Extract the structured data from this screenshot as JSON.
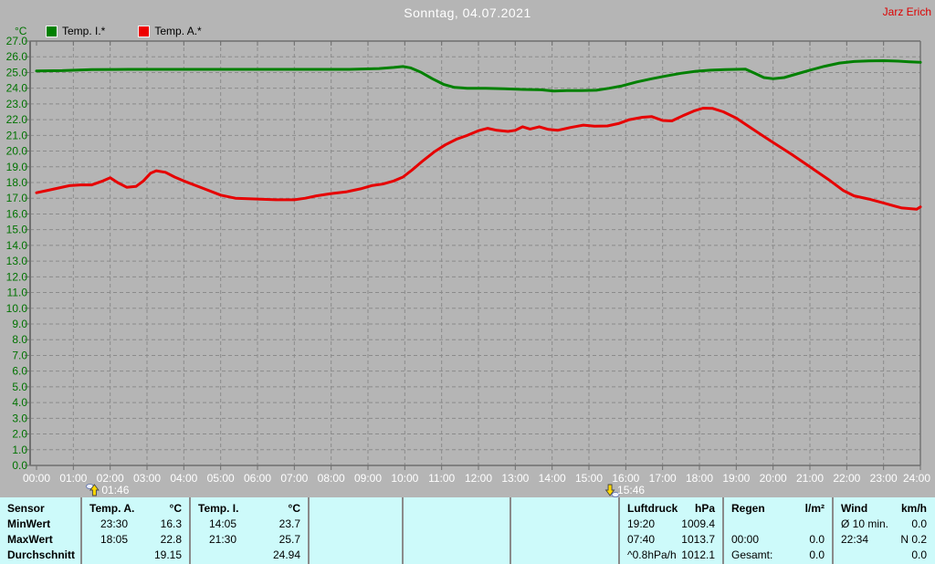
{
  "header": {
    "title": "Sonntag, 04.07.2021",
    "author": "Jarz Erich"
  },
  "chart_data": {
    "type": "line",
    "title": "Sonntag, 04.07.2021",
    "ylabel": "°C",
    "ylim": [
      0.0,
      27.0
    ],
    "ytick_step": 1.0,
    "xlim_hours": [
      0,
      24
    ],
    "xtick_step_hours": 1,
    "grid": true,
    "legend_position": "top-left",
    "series": [
      {
        "name": "Temp. I.*",
        "color": "#008000",
        "points": [
          [
            0,
            25.1
          ],
          [
            0.7,
            25.12
          ],
          [
            1.5,
            25.18
          ],
          [
            2.5,
            25.2
          ],
          [
            4,
            25.2
          ],
          [
            5.5,
            25.2
          ],
          [
            7,
            25.2
          ],
          [
            8.5,
            25.2
          ],
          [
            9.3,
            25.25
          ],
          [
            9.7,
            25.32
          ],
          [
            9.95,
            25.38
          ],
          [
            10.15,
            25.3
          ],
          [
            10.45,
            25.0
          ],
          [
            10.75,
            24.6
          ],
          [
            11.05,
            24.25
          ],
          [
            11.35,
            24.05
          ],
          [
            11.7,
            24.0
          ],
          [
            12.2,
            24.0
          ],
          [
            12.7,
            23.97
          ],
          [
            13.2,
            23.92
          ],
          [
            13.7,
            23.9
          ],
          [
            14.05,
            23.82
          ],
          [
            14.4,
            23.85
          ],
          [
            14.8,
            23.85
          ],
          [
            15.2,
            23.87
          ],
          [
            15.55,
            24.0
          ],
          [
            15.9,
            24.15
          ],
          [
            16.3,
            24.4
          ],
          [
            16.7,
            24.6
          ],
          [
            17.1,
            24.78
          ],
          [
            17.5,
            24.95
          ],
          [
            17.9,
            25.08
          ],
          [
            18.3,
            25.15
          ],
          [
            18.7,
            25.18
          ],
          [
            19.0,
            25.2
          ],
          [
            19.25,
            25.22
          ],
          [
            19.5,
            24.95
          ],
          [
            19.75,
            24.68
          ],
          [
            20.0,
            24.6
          ],
          [
            20.3,
            24.68
          ],
          [
            20.6,
            24.88
          ],
          [
            21.0,
            25.15
          ],
          [
            21.4,
            25.4
          ],
          [
            21.8,
            25.6
          ],
          [
            22.2,
            25.7
          ],
          [
            22.6,
            25.74
          ],
          [
            23.0,
            25.75
          ],
          [
            23.4,
            25.72
          ],
          [
            23.7,
            25.68
          ],
          [
            24,
            25.65
          ]
        ]
      },
      {
        "name": "Temp. A.*",
        "color": "#e60000",
        "points": [
          [
            0,
            17.35
          ],
          [
            0.3,
            17.5
          ],
          [
            0.6,
            17.65
          ],
          [
            0.9,
            17.8
          ],
          [
            1.2,
            17.85
          ],
          [
            1.5,
            17.85
          ],
          [
            1.8,
            18.1
          ],
          [
            2.0,
            18.3
          ],
          [
            2.2,
            18.0
          ],
          [
            2.45,
            17.7
          ],
          [
            2.7,
            17.75
          ],
          [
            2.9,
            18.1
          ],
          [
            3.1,
            18.6
          ],
          [
            3.25,
            18.75
          ],
          [
            3.5,
            18.65
          ],
          [
            3.75,
            18.35
          ],
          [
            4.0,
            18.1
          ],
          [
            4.5,
            17.65
          ],
          [
            5.0,
            17.2
          ],
          [
            5.4,
            17.0
          ],
          [
            6.0,
            16.95
          ],
          [
            6.5,
            16.9
          ],
          [
            7.0,
            16.9
          ],
          [
            7.3,
            17.0
          ],
          [
            7.6,
            17.15
          ],
          [
            8.0,
            17.3
          ],
          [
            8.4,
            17.4
          ],
          [
            8.8,
            17.6
          ],
          [
            9.1,
            17.8
          ],
          [
            9.4,
            17.9
          ],
          [
            9.7,
            18.1
          ],
          [
            9.95,
            18.35
          ],
          [
            10.2,
            18.8
          ],
          [
            10.5,
            19.4
          ],
          [
            10.8,
            19.95
          ],
          [
            11.1,
            20.4
          ],
          [
            11.4,
            20.75
          ],
          [
            11.7,
            21.0
          ],
          [
            12.0,
            21.3
          ],
          [
            12.25,
            21.45
          ],
          [
            12.5,
            21.32
          ],
          [
            12.8,
            21.25
          ],
          [
            13.0,
            21.32
          ],
          [
            13.2,
            21.55
          ],
          [
            13.4,
            21.4
          ],
          [
            13.65,
            21.55
          ],
          [
            13.9,
            21.38
          ],
          [
            14.15,
            21.32
          ],
          [
            14.5,
            21.5
          ],
          [
            14.85,
            21.65
          ],
          [
            15.15,
            21.58
          ],
          [
            15.5,
            21.6
          ],
          [
            15.8,
            21.75
          ],
          [
            16.1,
            22.0
          ],
          [
            16.45,
            22.15
          ],
          [
            16.7,
            22.2
          ],
          [
            17.0,
            21.95
          ],
          [
            17.25,
            21.92
          ],
          [
            17.55,
            22.25
          ],
          [
            17.85,
            22.55
          ],
          [
            18.1,
            22.73
          ],
          [
            18.35,
            22.72
          ],
          [
            18.65,
            22.5
          ],
          [
            19.0,
            22.1
          ],
          [
            19.35,
            21.55
          ],
          [
            19.7,
            21.0
          ],
          [
            20.0,
            20.55
          ],
          [
            20.5,
            19.8
          ],
          [
            21.0,
            19.0
          ],
          [
            21.5,
            18.2
          ],
          [
            21.9,
            17.5
          ],
          [
            22.2,
            17.15
          ],
          [
            22.6,
            16.95
          ],
          [
            23.0,
            16.7
          ],
          [
            23.3,
            16.5
          ],
          [
            23.5,
            16.38
          ],
          [
            23.9,
            16.3
          ],
          [
            24,
            16.45
          ]
        ]
      }
    ],
    "sun_markers": [
      {
        "time": "01:46",
        "hour": 1.77,
        "icon": "sunrise-up-arrow-icon"
      },
      {
        "time": "15:46",
        "hour": 15.77,
        "icon": "sunset-down-arrow-icon"
      }
    ]
  },
  "table": {
    "row_labels": [
      "Sensor",
      "MinWert",
      "MaxWert",
      "Durchschnitt"
    ],
    "columns": [
      {
        "key": "temp-a",
        "name": "Temp. A.",
        "unit": "°C",
        "rows": [
          [
            "23:30",
            "16.3"
          ],
          [
            "18:05",
            "22.8"
          ],
          [
            "",
            "19.15"
          ]
        ]
      },
      {
        "key": "temp-i",
        "name": "Temp. I.",
        "unit": "°C",
        "rows": [
          [
            "14:05",
            "23.7"
          ],
          [
            "21:30",
            "25.7"
          ],
          [
            "",
            "24.94"
          ]
        ]
      },
      {
        "key": "blank-1",
        "name": "",
        "unit": "",
        "rows": [
          [
            "",
            ""
          ],
          [
            "",
            ""
          ],
          [
            "",
            ""
          ]
        ]
      },
      {
        "key": "blank-2",
        "name": "",
        "unit": "",
        "rows": [
          [
            "",
            ""
          ],
          [
            "",
            ""
          ],
          [
            "",
            ""
          ]
        ]
      },
      {
        "key": "blank-3",
        "name": "",
        "unit": "",
        "rows": [
          [
            "",
            ""
          ],
          [
            "",
            ""
          ],
          [
            "",
            ""
          ]
        ]
      },
      {
        "key": "luftdruck",
        "name": "Luftdruck",
        "unit": "hPa",
        "rows": [
          [
            "19:20",
            "1009.4"
          ],
          [
            "07:40",
            "1013.7"
          ],
          [
            "^0.8hPa/h",
            "1012.1"
          ]
        ]
      },
      {
        "key": "regen",
        "name": "Regen",
        "unit": "l/m²",
        "rows": [
          [
            "",
            ""
          ],
          [
            "00:00",
            "0.0"
          ],
          [
            "Gesamt:",
            "0.0"
          ]
        ]
      },
      {
        "key": "wind",
        "name": "Wind",
        "unit": "km/h",
        "rows": [
          [
            "Ø 10 min.",
            "0.0"
          ],
          [
            "22:34",
            "N 0.2"
          ],
          [
            "",
            "0.0"
          ]
        ]
      }
    ]
  },
  "colors": {
    "background": "#b5b5b5",
    "grid": "#8b8b8b",
    "frame": "#6f6f6f",
    "y_labels": "#007300",
    "x_labels": "#ffffff",
    "title": "#ffffff",
    "author": "#dd0000",
    "table_background": "#cdfafa",
    "marker_arrow": "#ffd800"
  }
}
